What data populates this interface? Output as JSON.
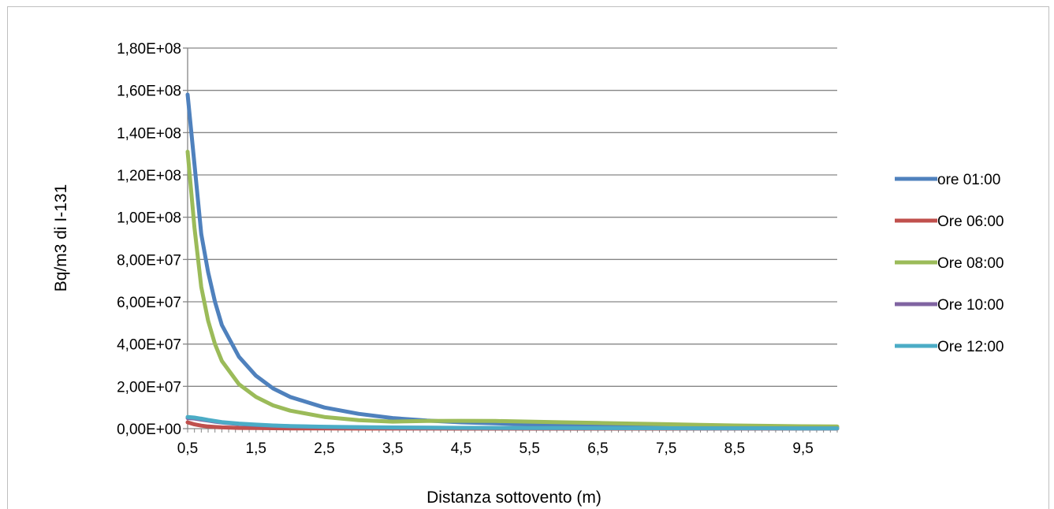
{
  "chart_data": {
    "type": "line",
    "title": "",
    "xlabel": "Distanza sottovento (m)",
    "ylabel": "Bq/m3 di I-131",
    "xlim": [
      0.5,
      10.0
    ],
    "ylim": [
      0,
      180000000
    ],
    "x_tick_labels": [
      "0,5",
      "1,5",
      "2,5",
      "3,5",
      "4,5",
      "5,5",
      "6,5",
      "7,5",
      "8,5",
      "9,5"
    ],
    "y_tick_labels": [
      "0,00E+00",
      "2,00E+07",
      "4,00E+07",
      "6,00E+07",
      "8,00E+07",
      "1,00E+08",
      "1,20E+08",
      "1,40E+08",
      "1,60E+08",
      "1,80E+08"
    ],
    "grid": true,
    "legend_position": "right",
    "x": [
      0.5,
      0.6,
      0.7,
      0.8,
      0.9,
      1.0,
      1.25,
      1.5,
      1.75,
      2.0,
      2.5,
      3.0,
      3.5,
      4.0,
      4.5,
      5.0,
      5.5,
      6.0,
      6.5,
      7.0,
      7.5,
      8.0,
      8.5,
      9.0,
      9.5,
      10.0
    ],
    "series": [
      {
        "name": "ore 01:00",
        "color": "#4f81bd",
        "values": [
          158000000,
          125000000,
          92000000,
          74000000,
          60000000,
          49000000,
          34000000,
          25000000,
          19000000,
          15000000,
          10000000,
          7000000,
          5000000,
          3800000,
          3000000,
          2500000,
          2000000,
          1700000,
          1500000,
          1300000,
          1100000,
          1000000,
          900000,
          800000,
          700000,
          600000
        ]
      },
      {
        "name": "Ore 06:00",
        "color": "#c0504d",
        "values": [
          3000000,
          2000000,
          1400000,
          1000000,
          800000,
          600000,
          350000,
          250000,
          180000,
          130000,
          80000,
          50000,
          35000,
          25000,
          18000,
          14000,
          11000,
          9000,
          7000,
          6000,
          5000,
          4000,
          3500,
          3000,
          2500,
          2000
        ]
      },
      {
        "name": "Ore 08:00",
        "color": "#9bbb59",
        "values": [
          131000000,
          95000000,
          67000000,
          51000000,
          40000000,
          32000000,
          21000000,
          15000000,
          11000000,
          8500000,
          5500000,
          4000000,
          3300000,
          3600000,
          3700000,
          3600000,
          3300000,
          3000000,
          2700000,
          2400000,
          2100000,
          1800000,
          1500000,
          1300000,
          1100000,
          1000000
        ]
      },
      {
        "name": "Ore 10:00",
        "color": "#8064a2",
        "values": [
          5000000,
          4800000,
          4300000,
          3800000,
          3300000,
          2900000,
          2200000,
          1700000,
          1400000,
          1100000,
          800000,
          600000,
          500000,
          400000,
          350000,
          300000,
          270000,
          240000,
          220000,
          200000,
          180000,
          160000,
          150000,
          140000,
          130000,
          120000
        ]
      },
      {
        "name": "Ore 12:00",
        "color": "#4bacc6",
        "values": [
          5500000,
          5200000,
          4700000,
          4100000,
          3600000,
          3100000,
          2400000,
          1900000,
          1500000,
          1200000,
          900000,
          700000,
          550000,
          450000,
          380000,
          320000,
          280000,
          250000,
          220000,
          200000,
          180000,
          160000,
          150000,
          140000,
          130000,
          120000
        ]
      }
    ]
  }
}
